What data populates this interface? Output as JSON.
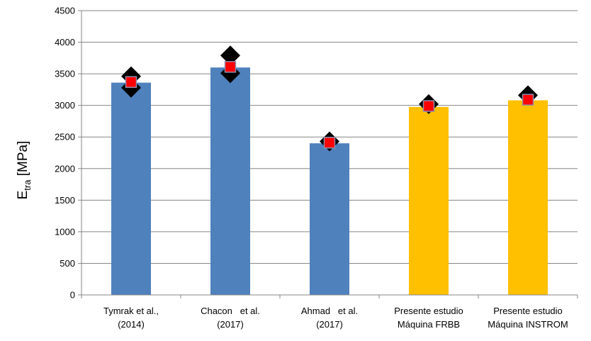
{
  "chart_data": {
    "type": "bar",
    "title": "",
    "xlabel": "",
    "ylabel": {
      "main": "E",
      "subscript": "tra",
      "suffix": " [MPa]"
    },
    "ylim": [
      0,
      4500
    ],
    "yticks": [
      0,
      500,
      1000,
      1500,
      2000,
      2500,
      3000,
      3500,
      4000,
      4500
    ],
    "grid": true,
    "legend": "none",
    "categories": [
      [
        "Tymrak et al.,",
        "(2014)"
      ],
      [
        "Chacon   et al.",
        "(2017)"
      ],
      [
        "Ahmad   et al.",
        "(2017)"
      ],
      [
        "Presente estudio",
        "Máquina FRBB"
      ],
      [
        "Presente estudio",
        "Máquina INSTROM"
      ]
    ],
    "values": [
      3360,
      3600,
      2400,
      2975,
      3080
    ],
    "bar_colors": [
      "#4f81bd",
      "#4f81bd",
      "#4f81bd",
      "#ffc000",
      "#ffc000"
    ],
    "markers": {
      "mean": [
        3370,
        3610,
        2410,
        2990,
        3090
      ],
      "diamonds": [
        [
          3280,
          3460
        ],
        [
          3510,
          3790
        ],
        [
          2430
        ],
        [
          3020
        ],
        [
          3160
        ]
      ],
      "mean_color": "#ff0000",
      "mean_outline": "#8f8fb0",
      "diamond_color": "#000000"
    }
  }
}
